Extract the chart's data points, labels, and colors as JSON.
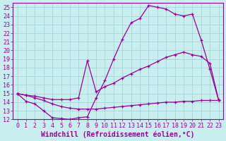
{
  "xlabel": "Windchill (Refroidissement éolien,°C)",
  "xlim": [
    -0.5,
    23.5
  ],
  "ylim": [
    12,
    25.5
  ],
  "xticks": [
    0,
    1,
    2,
    3,
    4,
    5,
    6,
    7,
    8,
    9,
    10,
    11,
    12,
    13,
    14,
    15,
    16,
    17,
    18,
    19,
    20,
    21,
    22,
    23
  ],
  "yticks": [
    12,
    13,
    14,
    15,
    16,
    17,
    18,
    19,
    20,
    21,
    22,
    23,
    24,
    25
  ],
  "bg_color": "#c8eef0",
  "grid_color": "#9fcfcf",
  "line_color": "#990099",
  "line1_x": [
    0,
    1,
    2,
    3,
    4,
    5,
    6,
    7,
    8,
    9,
    10,
    11,
    12,
    13,
    14,
    15,
    16,
    17,
    18,
    19,
    20,
    21,
    22,
    23
  ],
  "line1_y": [
    15.0,
    14.1,
    13.8,
    13.0,
    12.2,
    12.1,
    12.0,
    12.2,
    12.3,
    14.5,
    16.5,
    19.0,
    21.3,
    23.2,
    23.7,
    25.2,
    25.0,
    24.8,
    24.2,
    24.0,
    24.2,
    21.2,
    17.8,
    14.2
  ],
  "line2_x": [
    0,
    1,
    2,
    3,
    4,
    5,
    6,
    7,
    8,
    9,
    10,
    11,
    12,
    13,
    14,
    15,
    16,
    17,
    18,
    19,
    20,
    21,
    22,
    23
  ],
  "line2_y": [
    15.0,
    14.8,
    14.7,
    14.5,
    14.3,
    14.3,
    14.3,
    14.5,
    18.8,
    15.2,
    15.8,
    16.2,
    16.8,
    17.3,
    17.8,
    18.2,
    18.7,
    19.2,
    19.5,
    19.8,
    19.5,
    19.3,
    18.5,
    14.2
  ],
  "line3_x": [
    0,
    1,
    2,
    3,
    4,
    5,
    6,
    7,
    8,
    9,
    10,
    11,
    12,
    13,
    14,
    15,
    16,
    17,
    18,
    19,
    20,
    21,
    22,
    23
  ],
  "line3_y": [
    15.0,
    14.8,
    14.5,
    14.2,
    13.8,
    13.5,
    13.3,
    13.2,
    13.2,
    13.2,
    13.3,
    13.4,
    13.5,
    13.6,
    13.7,
    13.8,
    13.9,
    14.0,
    14.0,
    14.1,
    14.1,
    14.2,
    14.2,
    14.2
  ],
  "font_size_tick": 6,
  "font_size_label": 7
}
